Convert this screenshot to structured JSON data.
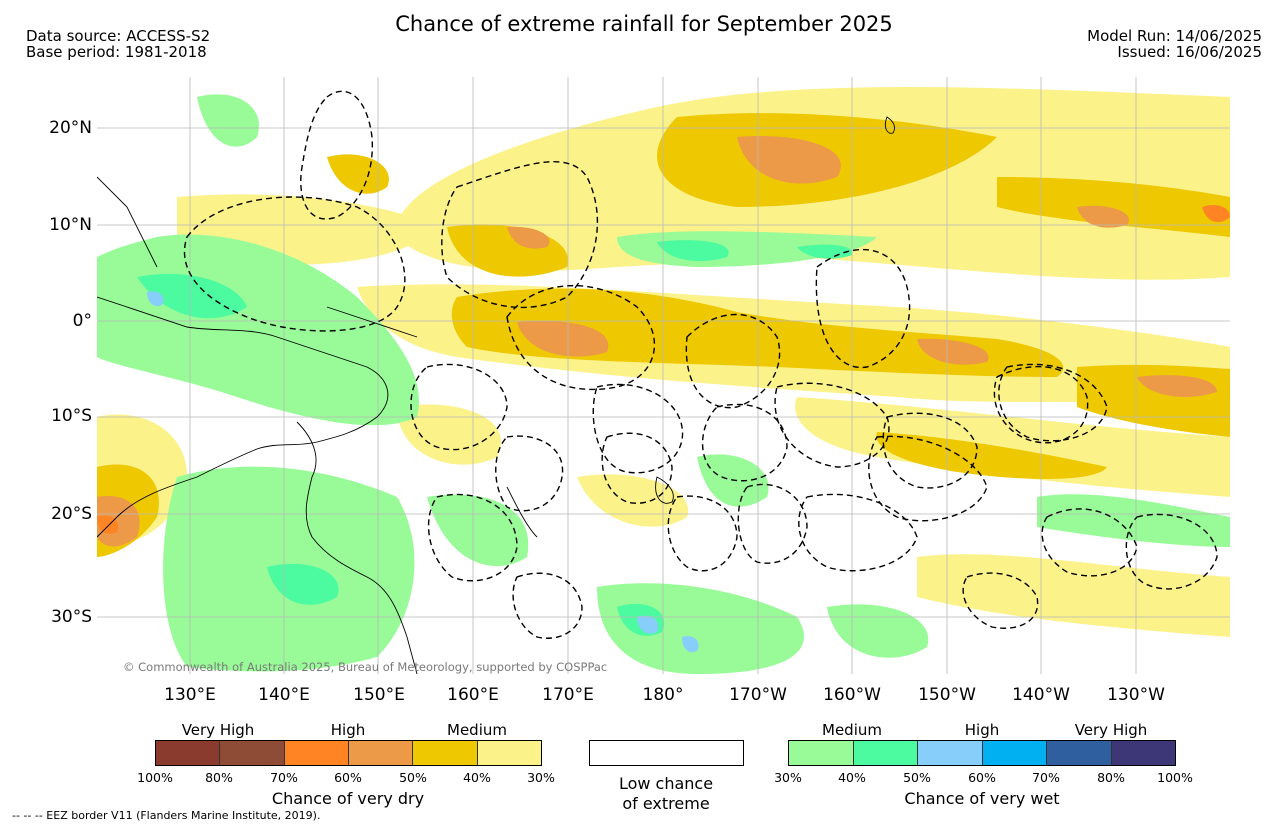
{
  "title": "Chance of extreme rainfall for September 2025",
  "meta_left": {
    "data_source": "Data source: ACCESS-S2",
    "base_period": "Base period: 1981-2018"
  },
  "meta_right": {
    "model_run": "Model Run: 14/06/2025",
    "issued": "Issued: 16/06/2025"
  },
  "map": {
    "lat_labels": [
      "20°N",
      "10°N",
      "0°",
      "10°S",
      "20°S",
      "30°S"
    ],
    "lon_labels": [
      "130°E",
      "140°E",
      "150°E",
      "160°E",
      "170°E",
      "180°",
      "170°W",
      "160°W",
      "150°W",
      "140°W",
      "130°W"
    ],
    "copyright": "© Commonwealth of Australia 2025, Bureau of Meteorology, supported by COSPPac",
    "eez_note": "-- -- -- EEZ border V11 (Flanders Marine Institute, 2019)."
  },
  "legend": {
    "dry": {
      "categories": [
        "Very High",
        "High",
        "Medium"
      ],
      "ticks": [
        "100%",
        "80%",
        "70%",
        "60%",
        "50%",
        "40%",
        "30%"
      ],
      "colors": [
        "#8b3a2e",
        "#8e4b35",
        "#ff8423",
        "#ec9a48",
        "#eec800",
        "#fcf28a"
      ],
      "caption": "Chance of very dry"
    },
    "low": {
      "caption_line1": "Low chance",
      "caption_line2": "of extreme",
      "color": "#ffffff"
    },
    "wet": {
      "categories": [
        "Medium",
        "High",
        "Very High"
      ],
      "ticks": [
        "30%",
        "40%",
        "50%",
        "60%",
        "70%",
        "80%",
        "100%"
      ],
      "colors": [
        "#98fb98",
        "#4cfaa0",
        "#87cefa",
        "#00b0f0",
        "#2f5f9e",
        "#3d3778"
      ],
      "caption": "Chance of very wet"
    }
  }
}
